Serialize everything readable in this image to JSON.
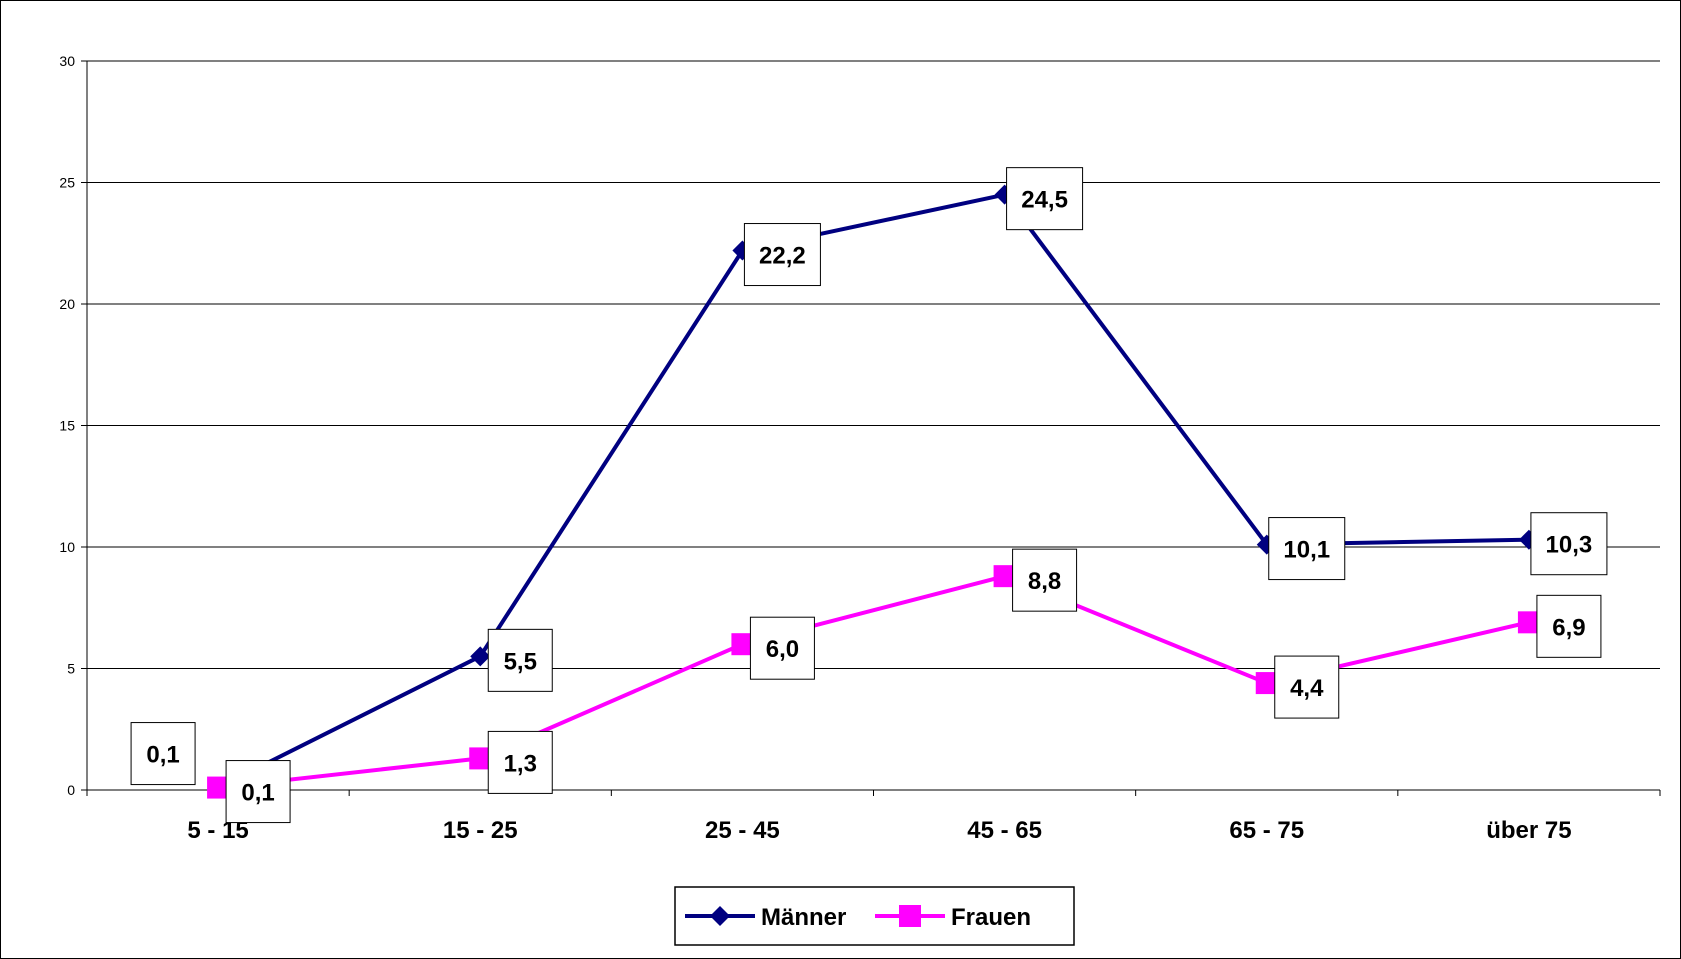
{
  "chart_data": {
    "type": "line",
    "categories": [
      "5 - 15",
      "15 - 25",
      "25 - 45",
      "45 - 65",
      "65 - 75",
      "über 75"
    ],
    "series": [
      {
        "name": "Männer",
        "values": [
          0.1,
          5.5,
          22.2,
          24.5,
          10.1,
          10.3
        ],
        "labels": [
          "0,1",
          "5,5",
          "22,2",
          "24,5",
          "10,1",
          "10,3"
        ],
        "color": "#000080",
        "marker": "diamond"
      },
      {
        "name": "Frauen",
        "values": [
          0.1,
          1.3,
          6.0,
          8.8,
          4.4,
          6.9
        ],
        "labels": [
          "0,1",
          "1,3",
          "6,0",
          "8,8",
          "4,4",
          "6,9"
        ],
        "color": "#FF00FF",
        "marker": "square"
      }
    ],
    "ylim": [
      0,
      30
    ],
    "yticks": [
      0,
      5,
      10,
      15,
      20,
      25,
      30
    ],
    "ytick_labels": [
      "0",
      "5",
      "10",
      "15",
      "20",
      "25",
      "30"
    ],
    "grid": true,
    "legend": "bottom"
  }
}
